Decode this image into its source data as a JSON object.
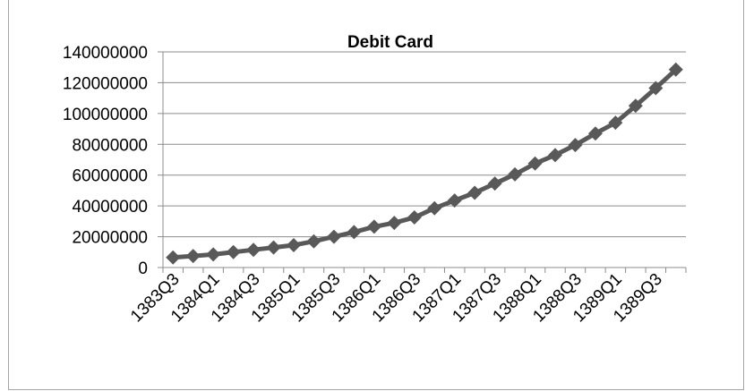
{
  "chart_data": {
    "type": "line",
    "title": "Debit Card",
    "xlabel": "",
    "ylabel": "",
    "x": [
      "1383Q3",
      "1383Q4",
      "1384Q1",
      "1384Q2",
      "1384Q3",
      "1384Q4",
      "1385Q1",
      "1385Q2",
      "1385Q3",
      "1385Q4",
      "1386Q1",
      "1386Q2",
      "1386Q3",
      "1386Q4",
      "1387Q1",
      "1387Q2",
      "1387Q3",
      "1387Q4",
      "1388Q1",
      "1388Q2",
      "1388Q3",
      "1388Q4",
      "1389Q1",
      "1389Q2",
      "1389Q3",
      "1389Q4"
    ],
    "x_tick_labels": [
      "1383Q3",
      "1384Q1",
      "1384Q3",
      "1385Q1",
      "1385Q3",
      "1386Q1",
      "1386Q3",
      "1387Q1",
      "1387Q3",
      "1388Q1",
      "1388Q3",
      "1389Q1",
      "1389Q3"
    ],
    "series": [
      {
        "values": [
          6500000,
          7500000,
          8500000,
          10000000,
          11500000,
          13000000,
          14500000,
          17000000,
          20000000,
          23000000,
          26500000,
          29000000,
          32500000,
          38500000,
          43500000,
          48500000,
          54500000,
          60500000,
          67500000,
          73000000,
          79500000,
          87000000,
          94000000,
          105000000,
          116500000,
          128500000
        ],
        "color": "#595959"
      }
    ],
    "y_tick_labels": [
      "0",
      "20000000",
      "40000000",
      "60000000",
      "80000000",
      "100000000",
      "120000000",
      "140000000"
    ],
    "ylim": [
      0,
      140000000
    ],
    "y_step": 20000000,
    "grid": "horizontal",
    "legend": "none",
    "marker": "diamond"
  }
}
